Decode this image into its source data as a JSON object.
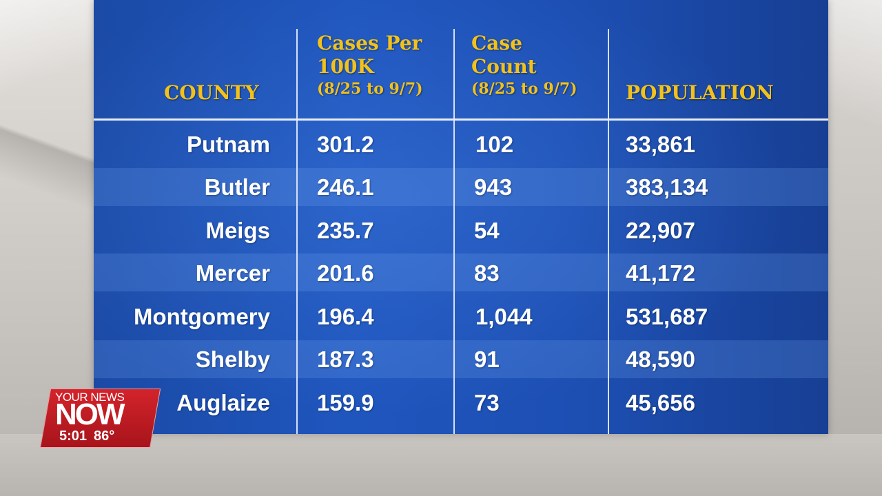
{
  "table": {
    "headers": {
      "county": "COUNTY",
      "cases_per_100k": {
        "line1": "Cases Per",
        "line2": "100K",
        "sub": "(8/25 to 9/7)"
      },
      "case_count": {
        "line1": "Case",
        "line2": "Count",
        "sub": "(8/25 to 9/7)"
      },
      "population": "POPULATION"
    },
    "rows": [
      {
        "county": "Putnam",
        "cases_per_100k": "301.2",
        "case_count": "102",
        "population": "33,861"
      },
      {
        "county": "Butler",
        "cases_per_100k": "246.1",
        "case_count": "943",
        "population": "383,134"
      },
      {
        "county": "Meigs",
        "cases_per_100k": "235.7",
        "case_count": "54",
        "population": "22,907"
      },
      {
        "county": "Mercer",
        "cases_per_100k": "201.6",
        "case_count": "83",
        "population": "41,172"
      },
      {
        "county": "Montgomery",
        "cases_per_100k": "196.4",
        "case_count": "1,044",
        "population": "531,687"
      },
      {
        "county": "Shelby",
        "cases_per_100k": "187.3",
        "case_count": "91",
        "population": "48,590"
      },
      {
        "county": "Auglaize",
        "cases_per_100k": "159.9",
        "case_count": "73",
        "population": "45,656"
      }
    ]
  },
  "logo": {
    "top_text": "YOUR NEWS",
    "main_text": "NOW",
    "time": "5:01",
    "temperature": "86°"
  },
  "colors": {
    "board_blue": "#1f56be",
    "header_gold": "#f2c21b",
    "logo_red": "#d3232b"
  }
}
